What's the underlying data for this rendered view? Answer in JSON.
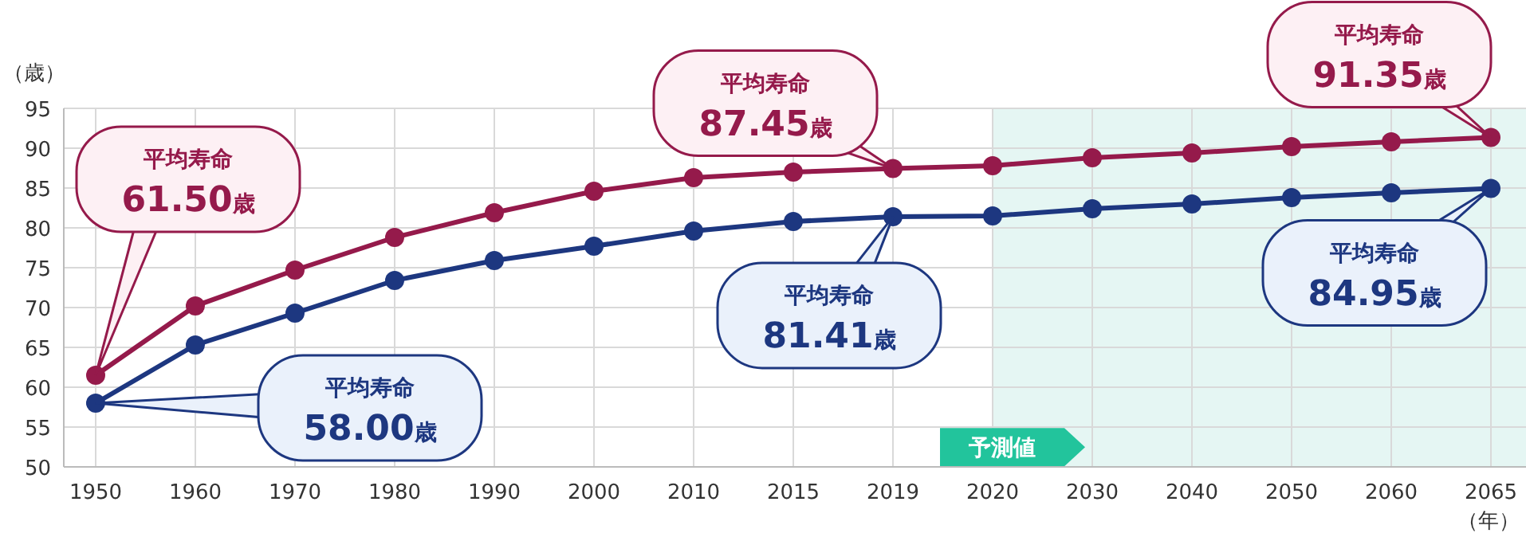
{
  "chart_data": {
    "type": "line",
    "ylabel": "（歳）",
    "xlabel": "（年）",
    "categories": [
      "1950",
      "1960",
      "1970",
      "1980",
      "1990",
      "2000",
      "2010",
      "2015",
      "2019",
      "2020",
      "2030",
      "2040",
      "2050",
      "2060",
      "2065"
    ],
    "series": [
      {
        "color": "#951a4b",
        "values": [
          61.5,
          70.2,
          74.7,
          78.8,
          81.9,
          84.6,
          86.3,
          87.0,
          87.45,
          87.8,
          88.8,
          89.4,
          90.2,
          90.8,
          91.35
        ]
      },
      {
        "color": "#1d3780",
        "values": [
          58.0,
          65.3,
          69.3,
          73.4,
          75.9,
          77.7,
          79.6,
          80.8,
          81.41,
          81.5,
          82.4,
          83.0,
          83.8,
          84.4,
          84.95
        ]
      }
    ],
    "ylim": [
      50,
      95
    ],
    "yticks": [
      50,
      55,
      60,
      65,
      70,
      75,
      80,
      85,
      90,
      95
    ],
    "grid": true,
    "marker": "circle",
    "line_style": "solid",
    "bands": [
      {
        "axis": "x",
        "from": "2020",
        "to": "2065",
        "label": "予測値",
        "color": "#e5f6f3"
      }
    ],
    "annotations": [
      {
        "text": "平均寿命\n61.50歳",
        "x": "1950",
        "y": 61.5
      },
      {
        "text": "平均寿命\n58.00歳",
        "x": "1950",
        "y": 58.0
      },
      {
        "text": "平均寿命\n87.45歳",
        "x": "2019",
        "y": 87.45
      },
      {
        "text": "平均寿命\n81.41歳",
        "x": "2019",
        "y": 81.41
      },
      {
        "text": "平均寿命\n91.35歳",
        "x": "2065",
        "y": 91.35
      },
      {
        "text": "平均寿命\n84.95歳",
        "x": "2065",
        "y": 84.95
      }
    ]
  }
}
